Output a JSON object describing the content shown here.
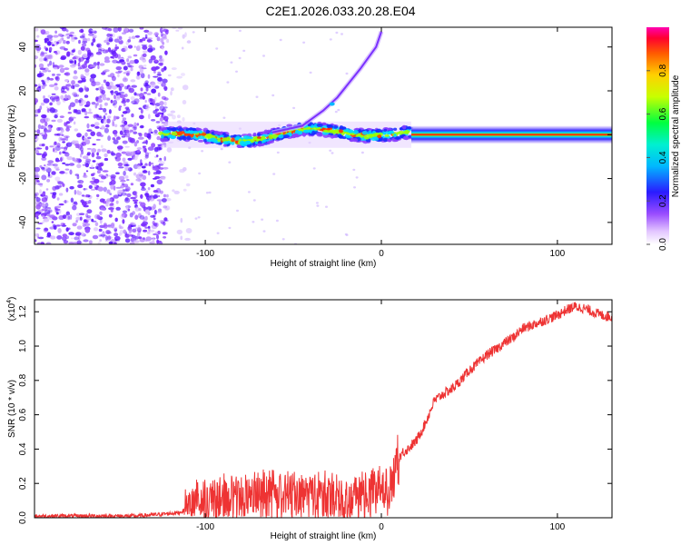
{
  "title": "C2E1.2026.033.20.28.E04",
  "colors": {
    "signal": "#ee3333",
    "background_scatter": "#7a2cff",
    "frame": "#000000"
  },
  "chart_data": [
    {
      "type": "heatmap",
      "title": "C2E1.2026.033.20.28.E04",
      "xlabel": "Height of straight line (km)",
      "ylabel": "Frequency (Hz)",
      "xlim": [
        -197,
        131
      ],
      "ylim": [
        -50,
        49
      ],
      "xticks": [
        -100,
        0,
        100
      ],
      "xtick_labels": [
        "-100",
        "0",
        "100"
      ],
      "yticks": [
        -40,
        -20,
        0,
        20,
        40
      ],
      "ytick_labels": [
        "-40",
        "-20",
        "0",
        "20",
        "40"
      ],
      "colorbar": {
        "label": "Normalized spectral amplitude",
        "range": [
          0,
          1
        ],
        "ticks": [
          0.0,
          0.2,
          0.4,
          0.6,
          0.8
        ],
        "tick_labels": [
          "0.0",
          "0.2",
          "0.4",
          "0.6",
          "0.8"
        ]
      },
      "features": {
        "noise_region_x": [
          -197,
          -108
        ],
        "main_band_y": 0,
        "main_band_start_x": -125,
        "saturated_band_start_x": 17,
        "harmonic_curve": [
          [
            -62,
            1
          ],
          [
            -45,
            4
          ],
          [
            -33,
            11
          ],
          [
            -25,
            17
          ],
          [
            -12,
            30
          ],
          [
            -3,
            40
          ],
          [
            0,
            47
          ]
        ]
      }
    },
    {
      "type": "line",
      "xlabel": "Height of straight line (km)",
      "ylabel": "SNR (10 * v/v)",
      "y_multiplier_label": "(x10",
      "y_multiplier_exp": "4",
      "xlim": [
        -197,
        131
      ],
      "ylim": [
        0,
        1.27
      ],
      "xticks": [
        -100,
        0,
        100
      ],
      "xtick_labels": [
        "-100",
        "0",
        "100"
      ],
      "yticks": [
        0.0,
        0.2,
        0.4,
        0.6,
        0.8,
        1.0,
        1.2
      ],
      "ytick_labels": [
        "0.0",
        "0.2",
        "0.4",
        "0.6",
        "0.8",
        "1.0",
        "1.2"
      ],
      "series": [
        {
          "name": "SNR",
          "x": [
            -197,
            -180,
            -160,
            -140,
            -125,
            -115,
            -110,
            -100,
            -90,
            -80,
            -70,
            -60,
            -50,
            -40,
            -30,
            -20,
            -10,
            0,
            5,
            8,
            10,
            12,
            15,
            20,
            25,
            30,
            35,
            40,
            45,
            50,
            55,
            60,
            65,
            70,
            75,
            80,
            85,
            90,
            95,
            100,
            105,
            110,
            115,
            120,
            125,
            131
          ],
          "y": [
            0.01,
            0.01,
            0.01,
            0.01,
            0.02,
            0.03,
            0.05,
            0.08,
            0.1,
            0.12,
            0.12,
            0.13,
            0.12,
            0.12,
            0.11,
            0.11,
            0.12,
            0.15,
            0.18,
            0.3,
            0.35,
            0.38,
            0.4,
            0.45,
            0.55,
            0.68,
            0.72,
            0.75,
            0.8,
            0.86,
            0.9,
            0.95,
            0.98,
            1.02,
            1.05,
            1.1,
            1.12,
            1.14,
            1.16,
            1.18,
            1.21,
            1.23,
            1.22,
            1.2,
            1.18,
            1.17
          ]
        }
      ]
    }
  ]
}
